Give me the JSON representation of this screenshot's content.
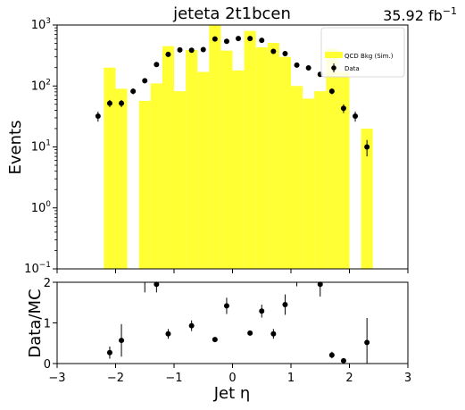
{
  "title": "jeteta  2t1bcen",
  "lumi": "35.92 fb",
  "lumi_sup": "−1",
  "chart_data": [
    {
      "type": "bar",
      "panel": "top",
      "xlim": [
        -3,
        3
      ],
      "ylim": [
        0.1,
        1000
      ],
      "yscale": "log",
      "ylabel": "Events",
      "ytick_labels": [
        {
          "base": "10",
          "exp": "−1"
        },
        {
          "base": "10",
          "exp": "0"
        },
        {
          "base": "10",
          "exp": "1"
        },
        {
          "base": "10",
          "exp": "2"
        },
        {
          "base": "10",
          "exp": "3"
        }
      ],
      "legend": {
        "placement": "top-right",
        "entries": [
          "QCD Bkg (Sim.)",
          "Data"
        ]
      },
      "series": [
        {
          "name": "QCD Bkg (Sim.)",
          "color": "#ffff33",
          "bin_edges": [
            -2.4,
            -2.2,
            -2.0,
            -1.8,
            -1.6,
            -1.4,
            -1.2,
            -1.0,
            -0.8,
            -0.6,
            -0.4,
            -0.2,
            0.0,
            0.2,
            0.4,
            0.6,
            0.8,
            1.0,
            1.2,
            1.4,
            1.6,
            1.8,
            2.0,
            2.2,
            2.4
          ],
          "values": [
            0,
            200,
            90,
            0,
            57,
            110,
            450,
            82,
            390,
            170,
            1000,
            380,
            180,
            800,
            430,
            510,
            300,
            100,
            62,
            82,
            410,
            170,
            0,
            20
          ]
        },
        {
          "name": "Data",
          "color": "#000000",
          "x": [
            -2.3,
            -2.1,
            -1.9,
            -1.7,
            -1.5,
            -1.3,
            -1.1,
            -0.9,
            -0.7,
            -0.5,
            -0.3,
            -0.1,
            0.1,
            0.3,
            0.5,
            0.7,
            0.9,
            1.1,
            1.3,
            1.5,
            1.7,
            1.9,
            2.1,
            2.3
          ],
          "values": [
            32,
            52,
            52,
            82,
            122,
            225,
            330,
            390,
            385,
            395,
            590,
            540,
            600,
            600,
            560,
            370,
            340,
            220,
            198,
            155,
            82,
            43,
            32,
            10
          ],
          "errors": [
            6,
            7,
            7,
            9,
            11,
            15,
            18,
            20,
            20,
            20,
            24,
            23,
            25,
            25,
            24,
            19,
            18,
            15,
            14,
            12,
            9,
            7,
            6,
            3
          ]
        }
      ]
    },
    {
      "type": "scatter",
      "panel": "ratio",
      "xlim": [
        -3,
        3
      ],
      "ylim": [
        0,
        2
      ],
      "xlabel": "Jet η",
      "ylabel": "Data/MC",
      "xtick_labels": [
        "−3",
        "−2",
        "−1",
        "0",
        "1",
        "2",
        "3"
      ],
      "ytick_labels": [
        "0",
        "1",
        "2"
      ],
      "series": [
        {
          "name": "Data",
          "x": [
            -2.1,
            -1.9,
            -1.5,
            -1.3,
            -1.1,
            -0.7,
            -0.3,
            -0.1,
            0.3,
            0.5,
            0.7,
            0.9,
            1.1,
            1.5,
            1.7,
            1.9,
            2.3
          ],
          "values": [
            0.27,
            0.57,
            2.15,
            1.95,
            0.73,
            0.93,
            0.59,
            1.42,
            0.75,
            1.29,
            0.73,
            1.45,
            2.2,
            1.95,
            0.21,
            0.07,
            0.52
          ],
          "errors": [
            0.15,
            0.4,
            0.4,
            0.2,
            0.12,
            0.13,
            0.06,
            0.2,
            0.06,
            0.16,
            0.12,
            0.25,
            0.3,
            0.3,
            0.08,
            0.05,
            0.6
          ]
        }
      ]
    }
  ]
}
